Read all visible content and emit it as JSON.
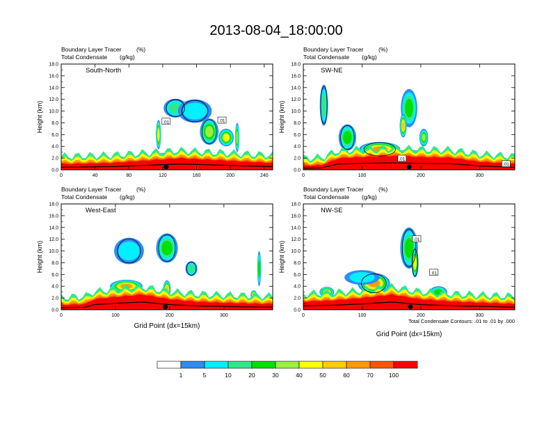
{
  "title": "2013-08-04_18:00:00",
  "footnote": "Total Condensate Contours: .01 to .01 by .000",
  "panel_header": {
    "left": "Boundary Layer Tracer",
    "left_line2": "Total Condensate",
    "unit1": "(%)",
    "unit2": "(g/kg)"
  },
  "colors": {
    "levels": [
      "#ffffff",
      "#2f8cf5",
      "#00f0ff",
      "#30e88a",
      "#00e000",
      "#98f040",
      "#ffff00",
      "#ffcc00",
      "#ff9900",
      "#ff5500",
      "#ff0000"
    ]
  },
  "colorbar": {
    "labels": [
      "1",
      "5",
      "10",
      "20",
      "30",
      "40",
      "50",
      "60",
      "70",
      "100"
    ]
  },
  "chart_data": [
    {
      "type": "heatmap",
      "name": "South-North",
      "xlabel": "",
      "ylabel": "Height (km)",
      "xlim": [
        0,
        250
      ],
      "ylim": [
        0,
        18
      ],
      "xticks": [
        0,
        40,
        80,
        120,
        160,
        200,
        240
      ],
      "yticks": [
        0,
        2,
        4,
        6,
        8,
        10,
        12,
        14,
        16,
        18
      ],
      "ytick_labels": [
        "0.0",
        "2.0",
        "4.0",
        "6.0",
        "8.0",
        "10.0",
        "12.0",
        "14.0",
        "16.0",
        "18.0"
      ],
      "marker_x": 124,
      "contour_labels": [
        {
          "text": ".01",
          "x": 124,
          "y": 8.2
        },
        {
          "text": ".01",
          "x": 190,
          "y": 8.4
        }
      ],
      "surface": [
        [
          0,
          0.8
        ],
        [
          60,
          1.0
        ],
        [
          100,
          1.4
        ],
        [
          140,
          1.8
        ],
        [
          180,
          1.5
        ],
        [
          220,
          1.2
        ],
        [
          250,
          1.0
        ]
      ],
      "blobs": [
        {
          "x": 135,
          "z": 10.5,
          "w": 28,
          "h": 3.2,
          "v": 3
        },
        {
          "x": 158,
          "z": 10.0,
          "w": 40,
          "h": 4.0,
          "v": 2
        },
        {
          "x": 175,
          "z": 6.5,
          "w": 22,
          "h": 4.5,
          "v": 5
        },
        {
          "x": 195,
          "z": 5.5,
          "w": 18,
          "h": 3.0,
          "v": 6
        },
        {
          "x": 115,
          "z": 6.0,
          "w": 6,
          "h": 5.0,
          "v": 6
        },
        {
          "x": 208,
          "z": 5.5,
          "w": 5,
          "h": 5.0,
          "v": 5
        },
        {
          "x": 125,
          "z": 2.0,
          "w": 40,
          "h": 1.8,
          "v": 9
        }
      ]
    },
    {
      "type": "heatmap",
      "name": "SW-NE",
      "xlabel": "",
      "ylabel": "Height (km)",
      "xlim": [
        0,
        360
      ],
      "ylim": [
        0,
        18
      ],
      "xticks": [
        0,
        100,
        200,
        300
      ],
      "yticks": [
        0,
        2,
        4,
        6,
        8,
        10,
        12,
        14,
        16,
        18
      ],
      "ytick_labels": [
        "0.0",
        "2.0",
        "4.0",
        "6.0",
        "8.0",
        "10.0",
        "12.0",
        "14.0",
        "16.0",
        "18.0"
      ],
      "marker_x": 180,
      "contour_labels": [
        {
          "text": ".01",
          "x": 168,
          "y": 1.9
        },
        {
          "text": ".01",
          "x": 345,
          "y": 1.0
        }
      ],
      "surface": [
        [
          0,
          0.5
        ],
        [
          30,
          0.6
        ],
        [
          60,
          1.8
        ],
        [
          100,
          2.0
        ],
        [
          150,
          2.2
        ],
        [
          200,
          2.0
        ],
        [
          250,
          1.9
        ],
        [
          300,
          1.2
        ],
        [
          360,
          0.8
        ]
      ],
      "blobs": [
        {
          "x": 35,
          "z": 11.0,
          "w": 14,
          "h": 7.0,
          "v": 3
        },
        {
          "x": 75,
          "z": 5.5,
          "w": 30,
          "h": 4.5,
          "v": 4
        },
        {
          "x": 130,
          "z": 3.5,
          "w": 70,
          "h": 2.5,
          "v": 8
        },
        {
          "x": 180,
          "z": 10.5,
          "w": 28,
          "h": 6.5,
          "v": 4
        },
        {
          "x": 170,
          "z": 7.5,
          "w": 12,
          "h": 4.0,
          "v": 7
        },
        {
          "x": 205,
          "z": 5.5,
          "w": 15,
          "h": 3.0,
          "v": 5
        },
        {
          "x": 180,
          "z": 2.5,
          "w": 60,
          "h": 1.8,
          "v": 9
        }
      ]
    },
    {
      "type": "heatmap",
      "name": "West-East",
      "xlabel": "Grid Point (dx=15km)",
      "ylabel": "Height (km)",
      "xlim": [
        0,
        390
      ],
      "ylim": [
        0,
        18
      ],
      "xticks": [
        0,
        100,
        200,
        300
      ],
      "yticks": [
        0,
        2,
        4,
        6,
        8,
        10,
        12,
        14,
        16,
        18
      ],
      "ytick_labels": [
        "0.0",
        "2.0",
        "4.0",
        "6.0",
        "8.0",
        "10.0",
        "12.0",
        "14.0",
        "16.0",
        "18.0"
      ],
      "marker_x": 192,
      "contour_labels": [],
      "surface": [
        [
          0,
          0.6
        ],
        [
          45,
          0.8
        ],
        [
          60,
          1.6
        ],
        [
          100,
          2.0
        ],
        [
          150,
          2.4
        ],
        [
          200,
          1.6
        ],
        [
          250,
          1.2
        ],
        [
          300,
          1.0
        ],
        [
          390,
          0.8
        ]
      ],
      "blobs": [
        {
          "x": 125,
          "z": 10.0,
          "w": 55,
          "h": 4.5,
          "v": 2
        },
        {
          "x": 195,
          "z": 10.5,
          "w": 40,
          "h": 5.0,
          "v": 4
        },
        {
          "x": 240,
          "z": 7.0,
          "w": 22,
          "h": 2.5,
          "v": 3
        },
        {
          "x": 120,
          "z": 4.0,
          "w": 60,
          "h": 2.2,
          "v": 8
        },
        {
          "x": 195,
          "z": 3.5,
          "w": 14,
          "h": 3.0,
          "v": 7
        },
        {
          "x": 365,
          "z": 7.0,
          "w": 7,
          "h": 6.0,
          "v": 4
        },
        {
          "x": 355,
          "z": 2.5,
          "w": 12,
          "h": 1.6,
          "v": 8
        }
      ]
    },
    {
      "type": "heatmap",
      "name": "NW-SE",
      "xlabel": "Grid Point (dx=15km)",
      "ylabel": "Height (km)",
      "xlim": [
        0,
        360
      ],
      "ylim": [
        0,
        18
      ],
      "xticks": [
        0,
        100,
        200,
        300
      ],
      "yticks": [
        0,
        2,
        4,
        6,
        8,
        10,
        12,
        14,
        16,
        18
      ],
      "ytick_labels": [
        "0.0",
        "2.0",
        "4.0",
        "6.0",
        "8.0",
        "10.0",
        "12.0",
        "14.0",
        "16.0",
        "18.0"
      ],
      "marker_x": 182,
      "contour_labels": [
        {
          "text": ".01",
          "x": 193,
          "y": 12.0
        },
        {
          "text": ".01",
          "x": 222,
          "y": 6.3
        }
      ],
      "surface": [
        [
          0,
          1.2
        ],
        [
          50,
          1.4
        ],
        [
          100,
          1.8
        ],
        [
          150,
          2.4
        ],
        [
          200,
          1.6
        ],
        [
          260,
          1.2
        ],
        [
          360,
          0.8
        ]
      ],
      "blobs": [
        {
          "x": 180,
          "z": 10.5,
          "w": 30,
          "h": 7.0,
          "v": 4
        },
        {
          "x": 190,
          "z": 8.0,
          "w": 12,
          "h": 5.0,
          "v": 6
        },
        {
          "x": 120,
          "z": 4.5,
          "w": 55,
          "h": 3.5,
          "v": 8
        },
        {
          "x": 100,
          "z": 5.5,
          "w": 60,
          "h": 2.5,
          "v": 2
        },
        {
          "x": 40,
          "z": 3.0,
          "w": 25,
          "h": 1.8,
          "v": 7
        },
        {
          "x": 230,
          "z": 3.0,
          "w": 30,
          "h": 2.0,
          "v": 4
        }
      ]
    }
  ]
}
